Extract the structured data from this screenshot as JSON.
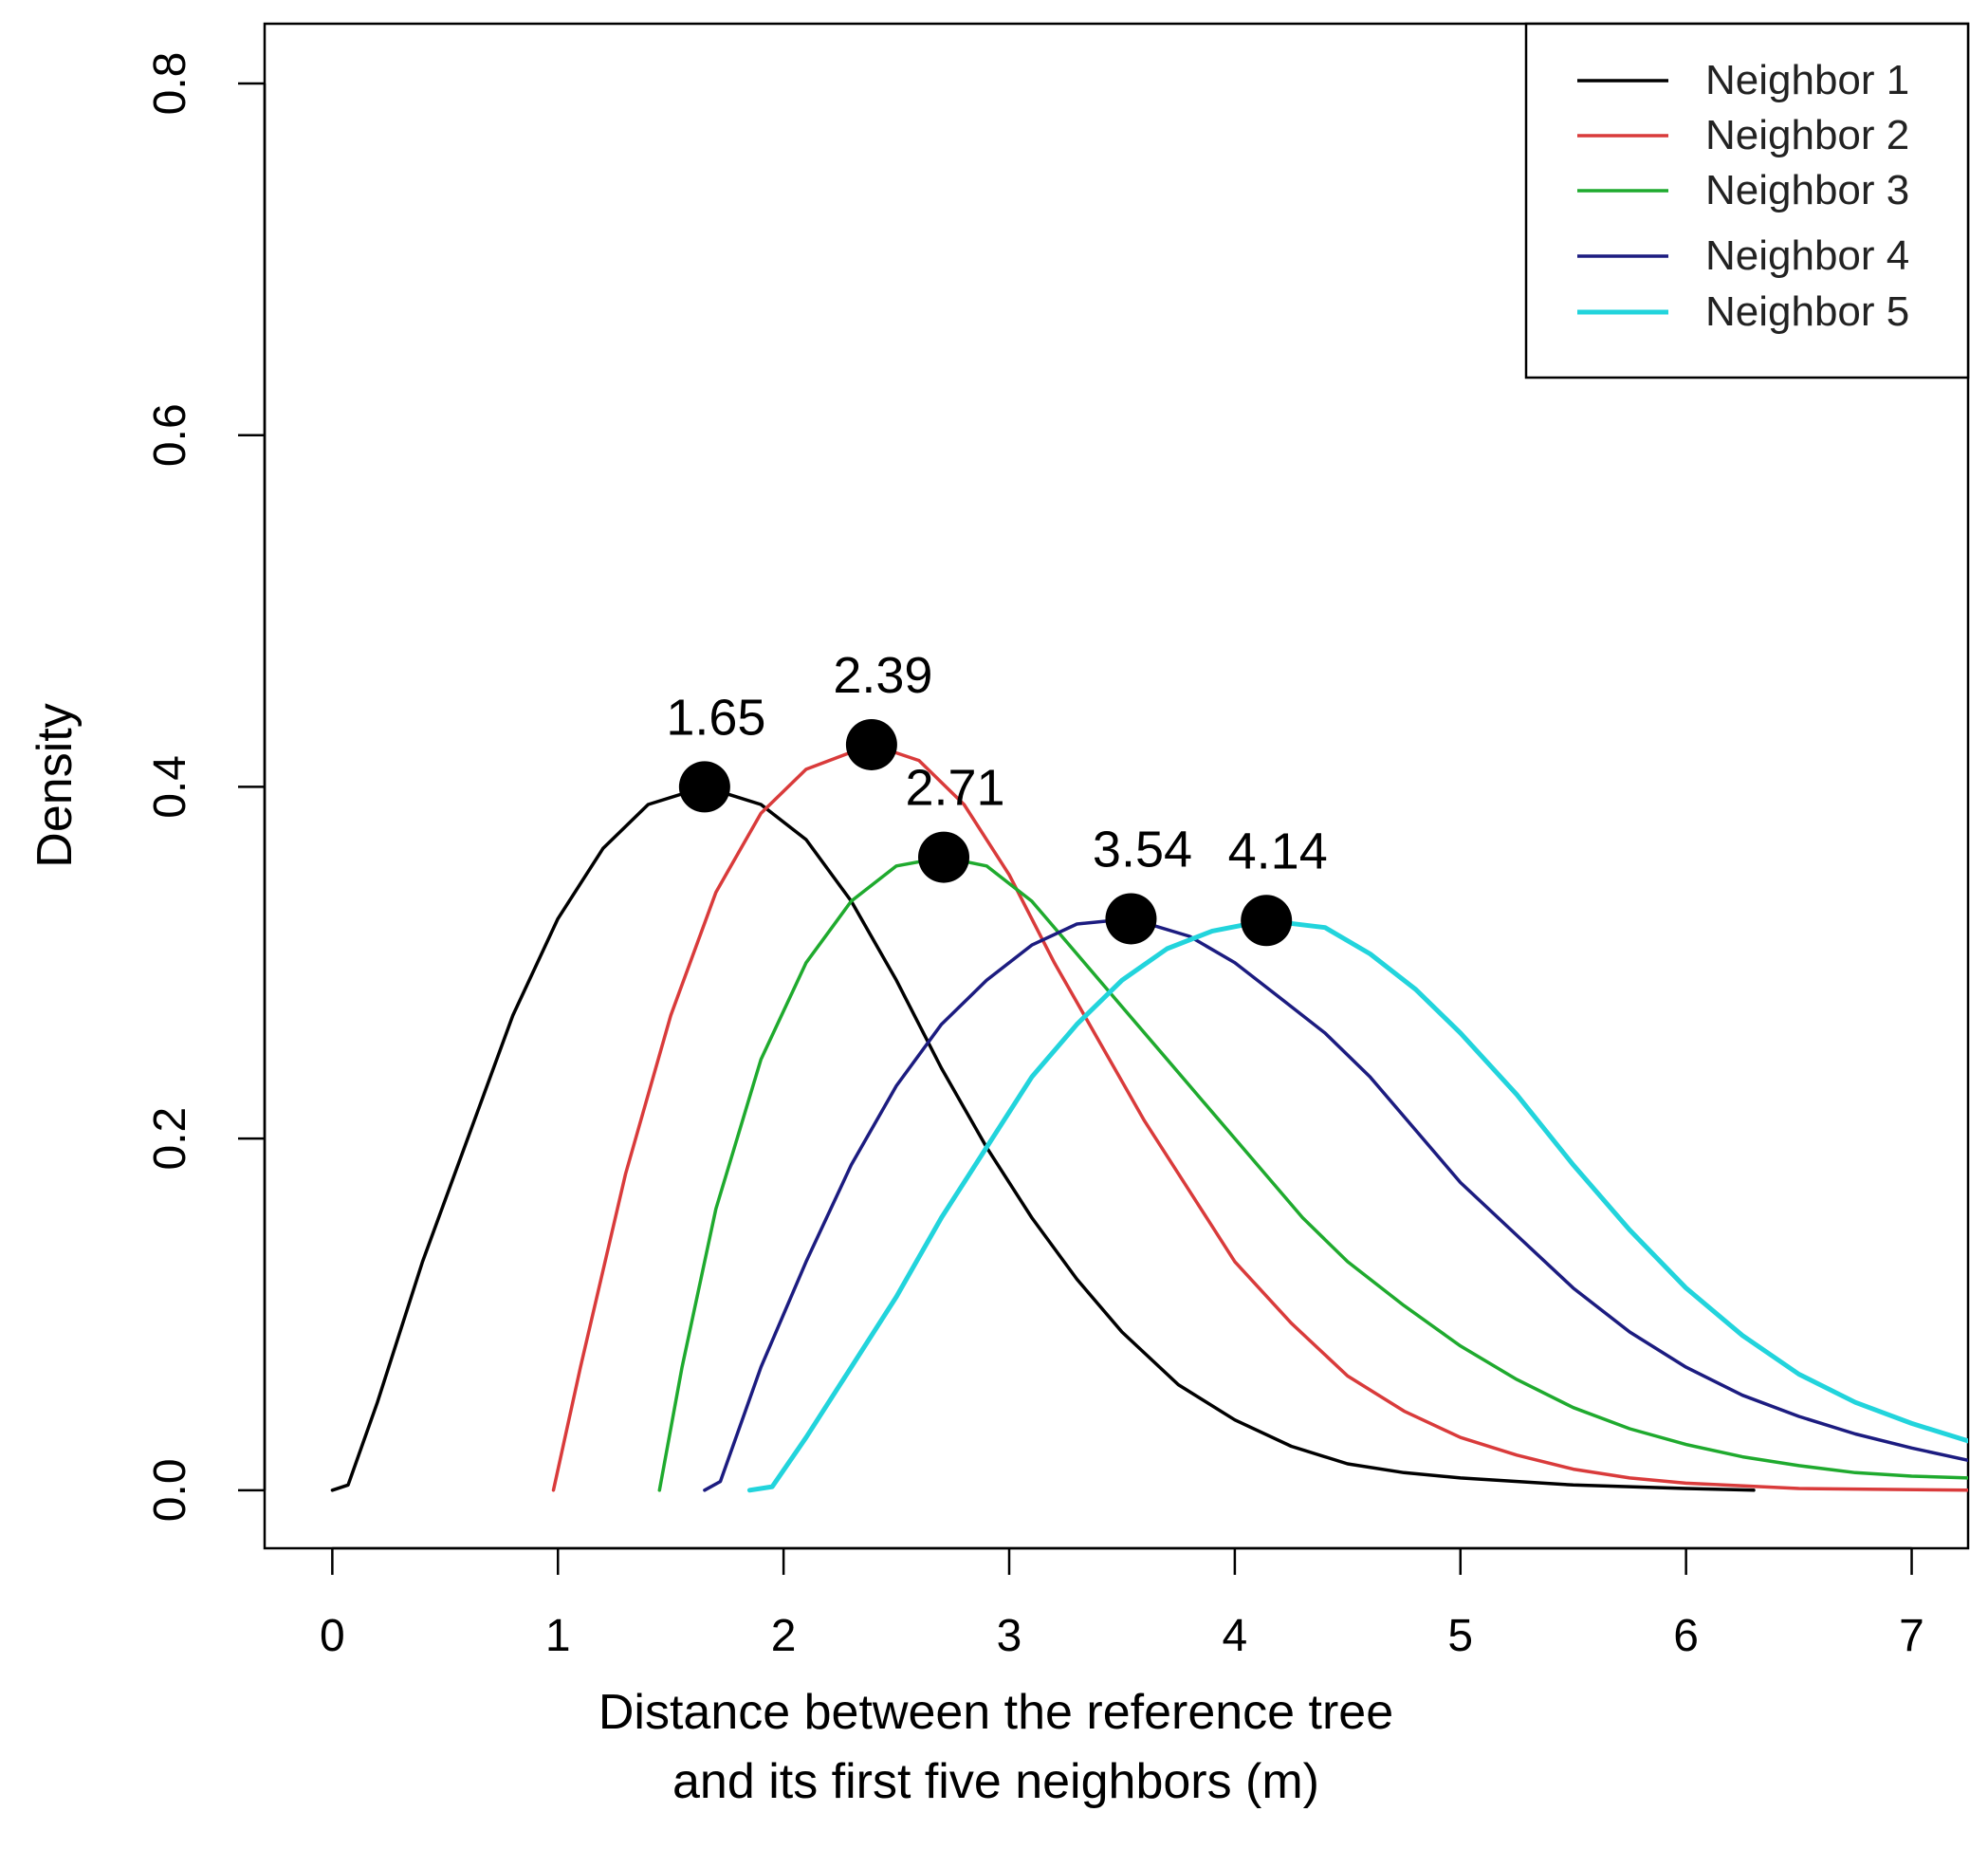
{
  "chart_data": {
    "type": "line",
    "title": "",
    "xlabel": [
      "Distance between the reference tree",
      "and its first five neighbors (m)"
    ],
    "ylabel": "Density",
    "xlim": [
      -0.3,
      7.25
    ],
    "ylim": [
      -0.033,
      0.834
    ],
    "x_ticks": [
      0,
      1,
      2,
      3,
      4,
      5,
      6,
      7
    ],
    "x_tick_labels": [
      "0",
      "1",
      "2",
      "3",
      "4",
      "5",
      "6",
      "7"
    ],
    "y_ticks": [
      0.0,
      0.2,
      0.4,
      0.6,
      0.8
    ],
    "y_tick_labels": [
      "0.0",
      "0.2",
      "0.4",
      "0.6",
      "0.8"
    ],
    "legend_position": "top-right",
    "grid": false,
    "series": [
      {
        "name": "Neighbor 1",
        "color": "#000000",
        "points": [
          [
            0.0,
            0.0
          ],
          [
            0.07,
            0.003
          ],
          [
            0.2,
            0.05
          ],
          [
            0.4,
            0.13
          ],
          [
            0.6,
            0.2
          ],
          [
            0.8,
            0.27
          ],
          [
            1.0,
            0.325
          ],
          [
            1.2,
            0.365
          ],
          [
            1.4,
            0.39
          ],
          [
            1.65,
            0.4
          ],
          [
            1.9,
            0.39
          ],
          [
            2.1,
            0.37
          ],
          [
            2.3,
            0.335
          ],
          [
            2.5,
            0.29
          ],
          [
            2.7,
            0.24
          ],
          [
            2.9,
            0.195
          ],
          [
            3.1,
            0.155
          ],
          [
            3.3,
            0.12
          ],
          [
            3.5,
            0.09
          ],
          [
            3.75,
            0.06
          ],
          [
            4.0,
            0.04
          ],
          [
            4.25,
            0.025
          ],
          [
            4.5,
            0.015
          ],
          [
            4.75,
            0.01
          ],
          [
            5.0,
            0.007
          ],
          [
            5.5,
            0.003
          ],
          [
            6.0,
            0.001
          ],
          [
            6.3,
            0.0
          ]
        ]
      },
      {
        "name": "Neighbor 2",
        "color": "#d93b3b",
        "points": [
          [
            0.98,
            0.0
          ],
          [
            1.1,
            0.07
          ],
          [
            1.3,
            0.18
          ],
          [
            1.5,
            0.27
          ],
          [
            1.7,
            0.34
          ],
          [
            1.9,
            0.385
          ],
          [
            2.1,
            0.41
          ],
          [
            2.39,
            0.424
          ],
          [
            2.6,
            0.415
          ],
          [
            2.8,
            0.39
          ],
          [
            3.0,
            0.35
          ],
          [
            3.2,
            0.3
          ],
          [
            3.4,
            0.255
          ],
          [
            3.6,
            0.21
          ],
          [
            3.8,
            0.17
          ],
          [
            4.0,
            0.13
          ],
          [
            4.25,
            0.095
          ],
          [
            4.5,
            0.065
          ],
          [
            4.75,
            0.045
          ],
          [
            5.0,
            0.03
          ],
          [
            5.25,
            0.02
          ],
          [
            5.5,
            0.012
          ],
          [
            5.75,
            0.007
          ],
          [
            6.0,
            0.004
          ],
          [
            6.5,
            0.001
          ],
          [
            7.25,
            0.0
          ]
        ]
      },
      {
        "name": "Neighbor 3",
        "color": "#1faa2e",
        "points": [
          [
            1.45,
            0.0
          ],
          [
            1.55,
            0.07
          ],
          [
            1.7,
            0.16
          ],
          [
            1.9,
            0.245
          ],
          [
            2.1,
            0.3
          ],
          [
            2.3,
            0.335
          ],
          [
            2.5,
            0.355
          ],
          [
            2.71,
            0.36
          ],
          [
            2.9,
            0.355
          ],
          [
            3.1,
            0.335
          ],
          [
            3.3,
            0.305
          ],
          [
            3.5,
            0.275
          ],
          [
            3.7,
            0.245
          ],
          [
            3.9,
            0.215
          ],
          [
            4.1,
            0.185
          ],
          [
            4.3,
            0.155
          ],
          [
            4.5,
            0.13
          ],
          [
            4.75,
            0.105
          ],
          [
            5.0,
            0.082
          ],
          [
            5.25,
            0.063
          ],
          [
            5.5,
            0.047
          ],
          [
            5.75,
            0.035
          ],
          [
            6.0,
            0.026
          ],
          [
            6.25,
            0.019
          ],
          [
            6.5,
            0.014
          ],
          [
            6.75,
            0.01
          ],
          [
            7.0,
            0.008
          ],
          [
            7.25,
            0.007
          ]
        ]
      },
      {
        "name": "Neighbor 4",
        "color": "#1c1c80",
        "points": [
          [
            1.65,
            0.0
          ],
          [
            1.72,
            0.005
          ],
          [
            1.9,
            0.07
          ],
          [
            2.1,
            0.13
          ],
          [
            2.3,
            0.185
          ],
          [
            2.5,
            0.23
          ],
          [
            2.7,
            0.265
          ],
          [
            2.9,
            0.29
          ],
          [
            3.1,
            0.31
          ],
          [
            3.3,
            0.322
          ],
          [
            3.54,
            0.325
          ],
          [
            3.8,
            0.315
          ],
          [
            4.0,
            0.3
          ],
          [
            4.2,
            0.28
          ],
          [
            4.4,
            0.26
          ],
          [
            4.6,
            0.235
          ],
          [
            4.8,
            0.205
          ],
          [
            5.0,
            0.175
          ],
          [
            5.25,
            0.145
          ],
          [
            5.5,
            0.115
          ],
          [
            5.75,
            0.09
          ],
          [
            6.0,
            0.07
          ],
          [
            6.25,
            0.054
          ],
          [
            6.5,
            0.042
          ],
          [
            6.75,
            0.032
          ],
          [
            7.0,
            0.024
          ],
          [
            7.25,
            0.017
          ]
        ]
      },
      {
        "name": "Neighbor 5",
        "color": "#22d4dc",
        "points": [
          [
            1.85,
            0.0
          ],
          [
            1.95,
            0.002
          ],
          [
            2.1,
            0.03
          ],
          [
            2.3,
            0.07
          ],
          [
            2.5,
            0.11
          ],
          [
            2.7,
            0.155
          ],
          [
            2.9,
            0.195
          ],
          [
            3.1,
            0.235
          ],
          [
            3.3,
            0.265
          ],
          [
            3.5,
            0.29
          ],
          [
            3.7,
            0.308
          ],
          [
            3.9,
            0.318
          ],
          [
            4.14,
            0.324
          ],
          [
            4.4,
            0.32
          ],
          [
            4.6,
            0.305
          ],
          [
            4.8,
            0.285
          ],
          [
            5.0,
            0.26
          ],
          [
            5.25,
            0.225
          ],
          [
            5.5,
            0.185
          ],
          [
            5.75,
            0.148
          ],
          [
            6.0,
            0.115
          ],
          [
            6.25,
            0.088
          ],
          [
            6.5,
            0.066
          ],
          [
            6.75,
            0.05
          ],
          [
            7.0,
            0.038
          ],
          [
            7.25,
            0.028
          ]
        ]
      }
    ],
    "annotations": [
      {
        "label": "1.65",
        "x": 1.65,
        "y": 0.4
      },
      {
        "label": "2.39",
        "x": 2.39,
        "y": 0.424
      },
      {
        "label": "2.71",
        "x": 2.71,
        "y": 0.36
      },
      {
        "label": "3.54",
        "x": 3.54,
        "y": 0.325
      },
      {
        "label": "4.14",
        "x": 4.14,
        "y": 0.324
      }
    ]
  }
}
